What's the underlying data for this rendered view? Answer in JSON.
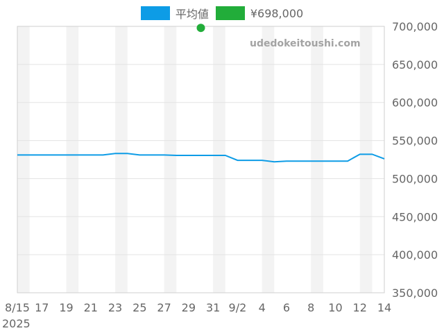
{
  "legend": [
    {
      "label": "平均値",
      "color": "#0d9ce6"
    },
    {
      "label": "¥698,000",
      "color": "#22ad3a"
    }
  ],
  "watermark": "udedokeitoushi.com",
  "chart_data": {
    "type": "line",
    "x_tick_labels": [
      "8/15",
      "17",
      "19",
      "21",
      "23",
      "25",
      "27",
      "29",
      "31",
      "9/2",
      "4",
      "6",
      "8",
      "10",
      "12",
      "14"
    ],
    "x_year_label": "2025",
    "x": [
      "8/15",
      "8/16",
      "8/17",
      "8/18",
      "8/19",
      "8/20",
      "8/21",
      "8/22",
      "8/23",
      "8/24",
      "8/25",
      "8/26",
      "8/27",
      "8/28",
      "8/29",
      "8/30",
      "8/31",
      "9/1",
      "9/2",
      "9/3",
      "9/4",
      "9/5",
      "9/6",
      "9/7",
      "9/8",
      "9/9",
      "9/10",
      "9/11",
      "9/12",
      "9/13",
      "9/14"
    ],
    "ylim": [
      350000,
      700000
    ],
    "y_tick_labels": [
      "700,000",
      "650,000",
      "600,000",
      "550,000",
      "500,000",
      "450,000",
      "400,000",
      "350,000"
    ],
    "y_ticks": [
      700000,
      650000,
      600000,
      550000,
      500000,
      450000,
      400000,
      350000
    ],
    "series": [
      {
        "name": "平均値",
        "color": "#0d9ce6",
        "values": [
          531000,
          531000,
          531000,
          531000,
          531000,
          531000,
          531000,
          531000,
          533000,
          533000,
          531000,
          531000,
          531000,
          530500,
          530500,
          530500,
          530500,
          530500,
          524000,
          524000,
          524000,
          522000,
          523000,
          523000,
          523000,
          523000,
          523000,
          523000,
          532000,
          532000,
          526000
        ]
      },
      {
        "name": "¥698,000",
        "color": "#22ad3a",
        "points": [
          {
            "x": "8/30",
            "y": 698000
          }
        ]
      }
    ],
    "grid": true,
    "alternating_bands": true,
    "y_axis_position": "right",
    "legend_position": "top-center"
  }
}
